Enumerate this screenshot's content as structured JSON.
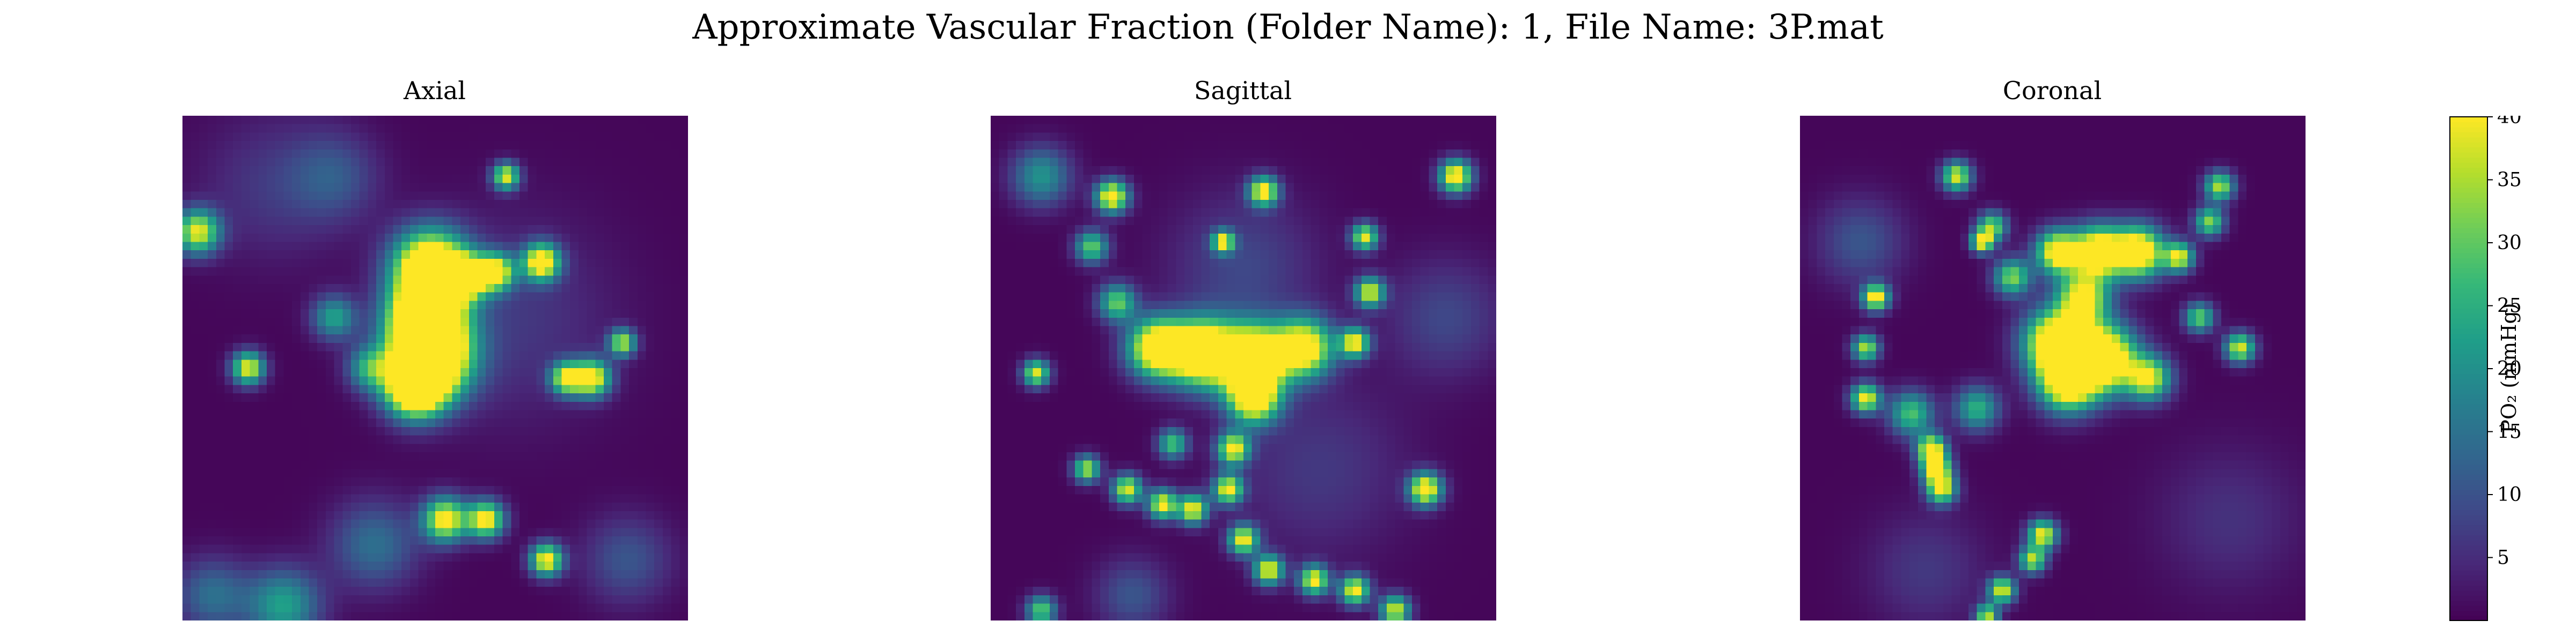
{
  "chart_data": {
    "type": "heatmap",
    "title": "Approximate Vascular Fraction (Folder Name): 1, File Name: 3P.mat",
    "colormap": "viridis",
    "panels": [
      {
        "title": "Axial",
        "blobs": [
          {
            "x": 0.49,
            "y": 0.3,
            "s": 0.05,
            "v": 55
          },
          {
            "x": 0.48,
            "y": 0.4,
            "s": 0.05,
            "v": 55
          },
          {
            "x": 0.49,
            "y": 0.48,
            "s": 0.055,
            "v": 60
          },
          {
            "x": 0.46,
            "y": 0.54,
            "s": 0.04,
            "v": 50
          },
          {
            "x": 0.56,
            "y": 0.32,
            "s": 0.03,
            "v": 40
          },
          {
            "x": 0.62,
            "y": 0.31,
            "s": 0.025,
            "v": 40
          },
          {
            "x": 0.71,
            "y": 0.29,
            "s": 0.025,
            "v": 45
          },
          {
            "x": 0.3,
            "y": 0.4,
            "s": 0.03,
            "v": 22
          },
          {
            "x": 0.37,
            "y": 0.5,
            "s": 0.03,
            "v": 22
          },
          {
            "x": 0.03,
            "y": 0.23,
            "s": 0.03,
            "v": 38
          },
          {
            "x": 0.13,
            "y": 0.5,
            "s": 0.022,
            "v": 40
          },
          {
            "x": 0.64,
            "y": 0.12,
            "s": 0.018,
            "v": 38
          },
          {
            "x": 0.81,
            "y": 0.52,
            "s": 0.025,
            "v": 42
          },
          {
            "x": 0.76,
            "y": 0.52,
            "s": 0.022,
            "v": 38
          },
          {
            "x": 0.87,
            "y": 0.45,
            "s": 0.018,
            "v": 35
          },
          {
            "x": 0.52,
            "y": 0.8,
            "s": 0.03,
            "v": 42
          },
          {
            "x": 0.6,
            "y": 0.8,
            "s": 0.025,
            "v": 42
          },
          {
            "x": 0.72,
            "y": 0.88,
            "s": 0.022,
            "v": 42
          },
          {
            "x": 0.38,
            "y": 0.85,
            "s": 0.06,
            "v": 14
          },
          {
            "x": 0.2,
            "y": 0.97,
            "s": 0.05,
            "v": 22
          },
          {
            "x": 0.06,
            "y": 0.95,
            "s": 0.05,
            "v": 14
          },
          {
            "x": 0.88,
            "y": 0.88,
            "s": 0.06,
            "v": 10
          },
          {
            "x": 0.65,
            "y": 0.4,
            "s": 0.14,
            "v": 6
          },
          {
            "x": 0.18,
            "y": 0.14,
            "s": 0.1,
            "v": 6
          },
          {
            "x": 0.3,
            "y": 0.12,
            "s": 0.06,
            "v": 9
          }
        ]
      },
      {
        "title": "Sagittal",
        "blobs": [
          {
            "x": 0.33,
            "y": 0.46,
            "s": 0.04,
            "v": 50
          },
          {
            "x": 0.42,
            "y": 0.47,
            "s": 0.045,
            "v": 55
          },
          {
            "x": 0.52,
            "y": 0.48,
            "s": 0.045,
            "v": 55
          },
          {
            "x": 0.62,
            "y": 0.46,
            "s": 0.04,
            "v": 45
          },
          {
            "x": 0.52,
            "y": 0.56,
            "s": 0.035,
            "v": 45
          },
          {
            "x": 0.48,
            "y": 0.66,
            "s": 0.022,
            "v": 40
          },
          {
            "x": 0.47,
            "y": 0.74,
            "s": 0.02,
            "v": 40
          },
          {
            "x": 0.72,
            "y": 0.45,
            "s": 0.02,
            "v": 40
          },
          {
            "x": 0.75,
            "y": 0.35,
            "s": 0.02,
            "v": 38
          },
          {
            "x": 0.74,
            "y": 0.24,
            "s": 0.018,
            "v": 38
          },
          {
            "x": 0.25,
            "y": 0.37,
            "s": 0.025,
            "v": 30
          },
          {
            "x": 0.2,
            "y": 0.26,
            "s": 0.022,
            "v": 30
          },
          {
            "x": 0.24,
            "y": 0.16,
            "s": 0.022,
            "v": 45
          },
          {
            "x": 0.1,
            "y": 0.12,
            "s": 0.04,
            "v": 20
          },
          {
            "x": 0.54,
            "y": 0.15,
            "s": 0.02,
            "v": 42
          },
          {
            "x": 0.46,
            "y": 0.25,
            "s": 0.015,
            "v": 38
          },
          {
            "x": 0.92,
            "y": 0.12,
            "s": 0.022,
            "v": 45
          },
          {
            "x": 0.09,
            "y": 0.51,
            "s": 0.018,
            "v": 38
          },
          {
            "x": 0.4,
            "y": 0.78,
            "s": 0.02,
            "v": 40
          },
          {
            "x": 0.34,
            "y": 0.77,
            "s": 0.02,
            "v": 40
          },
          {
            "x": 0.27,
            "y": 0.74,
            "s": 0.02,
            "v": 38
          },
          {
            "x": 0.19,
            "y": 0.7,
            "s": 0.018,
            "v": 35
          },
          {
            "x": 0.36,
            "y": 0.65,
            "s": 0.02,
            "v": 28
          },
          {
            "x": 0.5,
            "y": 0.84,
            "s": 0.02,
            "v": 40
          },
          {
            "x": 0.55,
            "y": 0.9,
            "s": 0.02,
            "v": 40
          },
          {
            "x": 0.64,
            "y": 0.92,
            "s": 0.02,
            "v": 40
          },
          {
            "x": 0.72,
            "y": 0.94,
            "s": 0.02,
            "v": 40
          },
          {
            "x": 0.86,
            "y": 0.74,
            "s": 0.022,
            "v": 45
          },
          {
            "x": 0.8,
            "y": 0.98,
            "s": 0.02,
            "v": 38
          },
          {
            "x": 0.1,
            "y": 0.98,
            "s": 0.02,
            "v": 30
          },
          {
            "x": 0.28,
            "y": 0.95,
            "s": 0.05,
            "v": 10
          },
          {
            "x": 0.65,
            "y": 0.7,
            "s": 0.12,
            "v": 6
          },
          {
            "x": 0.9,
            "y": 0.4,
            "s": 0.08,
            "v": 8
          },
          {
            "x": 0.5,
            "y": 0.3,
            "s": 0.1,
            "v": 8
          }
        ]
      },
      {
        "title": "Coronal",
        "blobs": [
          {
            "x": 0.51,
            "y": 0.27,
            "s": 0.03,
            "v": 45
          },
          {
            "x": 0.59,
            "y": 0.27,
            "s": 0.035,
            "v": 50
          },
          {
            "x": 0.67,
            "y": 0.27,
            "s": 0.035,
            "v": 50
          },
          {
            "x": 0.56,
            "y": 0.36,
            "s": 0.035,
            "v": 40
          },
          {
            "x": 0.51,
            "y": 0.45,
            "s": 0.045,
            "v": 55
          },
          {
            "x": 0.6,
            "y": 0.48,
            "s": 0.045,
            "v": 55
          },
          {
            "x": 0.53,
            "y": 0.53,
            "s": 0.04,
            "v": 45
          },
          {
            "x": 0.69,
            "y": 0.52,
            "s": 0.03,
            "v": 38
          },
          {
            "x": 0.75,
            "y": 0.28,
            "s": 0.02,
            "v": 38
          },
          {
            "x": 0.81,
            "y": 0.21,
            "s": 0.02,
            "v": 32
          },
          {
            "x": 0.83,
            "y": 0.14,
            "s": 0.02,
            "v": 35
          },
          {
            "x": 0.79,
            "y": 0.4,
            "s": 0.02,
            "v": 30
          },
          {
            "x": 0.87,
            "y": 0.46,
            "s": 0.02,
            "v": 38
          },
          {
            "x": 0.38,
            "y": 0.22,
            "s": 0.02,
            "v": 32
          },
          {
            "x": 0.31,
            "y": 0.12,
            "s": 0.02,
            "v": 38
          },
          {
            "x": 0.42,
            "y": 0.32,
            "s": 0.025,
            "v": 32
          },
          {
            "x": 0.36,
            "y": 0.25,
            "s": 0.015,
            "v": 40
          },
          {
            "x": 0.15,
            "y": 0.36,
            "s": 0.018,
            "v": 42
          },
          {
            "x": 0.13,
            "y": 0.46,
            "s": 0.018,
            "v": 35
          },
          {
            "x": 0.13,
            "y": 0.56,
            "s": 0.02,
            "v": 40
          },
          {
            "x": 0.22,
            "y": 0.59,
            "s": 0.03,
            "v": 28
          },
          {
            "x": 0.35,
            "y": 0.58,
            "s": 0.03,
            "v": 25
          },
          {
            "x": 0.26,
            "y": 0.66,
            "s": 0.02,
            "v": 42
          },
          {
            "x": 0.27,
            "y": 0.7,
            "s": 0.02,
            "v": 42
          },
          {
            "x": 0.28,
            "y": 0.74,
            "s": 0.02,
            "v": 38
          },
          {
            "x": 0.48,
            "y": 0.83,
            "s": 0.02,
            "v": 40
          },
          {
            "x": 0.46,
            "y": 0.88,
            "s": 0.018,
            "v": 35
          },
          {
            "x": 0.4,
            "y": 0.94,
            "s": 0.018,
            "v": 38
          },
          {
            "x": 0.37,
            "y": 0.99,
            "s": 0.015,
            "v": 35
          },
          {
            "x": 0.12,
            "y": 0.25,
            "s": 0.06,
            "v": 10
          },
          {
            "x": 0.85,
            "y": 0.8,
            "s": 0.1,
            "v": 5
          },
          {
            "x": 0.25,
            "y": 0.9,
            "s": 0.08,
            "v": 6
          }
        ]
      }
    ],
    "colorbar": {
      "label": "PO₂ (mmHg)",
      "range": [
        0,
        40
      ],
      "ticks": [
        5,
        10,
        15,
        20,
        25,
        30,
        35,
        40
      ],
      "tick_labels": [
        "5",
        "10",
        "15",
        "20",
        "25",
        "30",
        "35",
        "40"
      ]
    }
  }
}
